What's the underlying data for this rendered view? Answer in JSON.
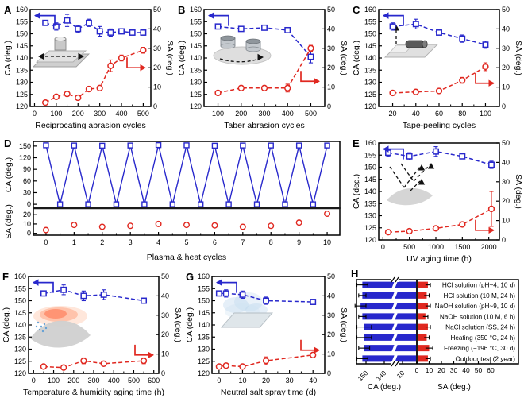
{
  "colors": {
    "ca_blue": "#2828CC",
    "sa_red": "#E02820",
    "frame": "#000000",
    "divider": "#1a1a1a",
    "inset_gray": "#d6d6d6"
  },
  "chart_data": [
    {
      "id": "A",
      "type": "dual",
      "letter": "A",
      "xlabel": "Reciprocating abrasion cycles",
      "ylabel_left": "CA (deg.)",
      "ylabel_right": "SA (deg.)",
      "xlim": [
        -20,
        535
      ],
      "xticks": [
        0,
        100,
        200,
        300,
        400,
        500
      ],
      "ylim_left": [
        120,
        160
      ],
      "yticks_left": [
        120,
        125,
        130,
        135,
        140,
        145,
        150,
        155,
        160
      ],
      "ylim_right": [
        0,
        50
      ],
      "yticks_right": [
        0,
        10,
        20,
        30,
        40,
        50
      ],
      "ca": {
        "x": [
          50,
          100,
          150,
          200,
          250,
          300,
          350,
          400,
          450,
          500
        ],
        "y": [
          154.5,
          153,
          155.5,
          152,
          154.5,
          151,
          150.5,
          151,
          150.5,
          150.5
        ],
        "err": [
          1,
          1.5,
          2.5,
          1.5,
          1.5,
          2,
          1.5,
          1,
          1,
          1
        ]
      },
      "sa": {
        "x": [
          50,
          100,
          150,
          200,
          250,
          300,
          350,
          400,
          500
        ],
        "y": [
          2,
          5,
          6.5,
          4.5,
          9,
          9.5,
          21,
          25,
          29
        ],
        "err": [
          1,
          1,
          1,
          1,
          1,
          1,
          3,
          1.5,
          1.5
        ]
      },
      "inset": "reciprocating",
      "red_arrow_sa": 20
    },
    {
      "id": "B",
      "type": "dual",
      "letter": "B",
      "xlabel": "Taber abrasion cycles",
      "ylabel_left": "CA (deg.)",
      "ylabel_right": "SA (deg.)",
      "xlim": [
        40,
        560
      ],
      "xticks": [
        100,
        200,
        300,
        400,
        500
      ],
      "ylim_left": [
        120,
        160
      ],
      "yticks_left": [
        120,
        125,
        130,
        135,
        140,
        145,
        150,
        155,
        160
      ],
      "ylim_right": [
        0,
        50
      ],
      "yticks_right": [
        0,
        10,
        20,
        30,
        40,
        50
      ],
      "ca": {
        "x": [
          100,
          200,
          300,
          400,
          500
        ],
        "y": [
          153,
          152,
          152.5,
          151.5,
          140.5
        ],
        "err": [
          1,
          1,
          1,
          1,
          2.5
        ]
      },
      "sa": {
        "x": [
          100,
          200,
          300,
          400,
          500
        ],
        "y": [
          7,
          9.5,
          9.5,
          9.5,
          30
        ],
        "err": [
          1,
          1,
          1,
          2,
          1.5
        ]
      },
      "inset": "taber",
      "red_arrow_sa": 13
    },
    {
      "id": "C",
      "type": "dual",
      "letter": "C",
      "xlabel": "Tape-peeling cycles",
      "ylabel_left": "CA (deg.)",
      "ylabel_right": "SA (deg.)",
      "xlim": [
        8,
        112
      ],
      "xticks": [
        20,
        40,
        60,
        80,
        100
      ],
      "ylim_left": [
        120,
        160
      ],
      "yticks_left": [
        120,
        125,
        130,
        135,
        140,
        145,
        150,
        155,
        160
      ],
      "ylim_right": [
        0,
        50
      ],
      "yticks_right": [
        0,
        10,
        20,
        30,
        40,
        50
      ],
      "ca": {
        "x": [
          20,
          40,
          60,
          80,
          100
        ],
        "y": [
          153,
          154,
          150.5,
          148,
          145.5
        ],
        "err": [
          1.5,
          2,
          1,
          1.5,
          1.5
        ]
      },
      "sa": {
        "x": [
          20,
          40,
          60,
          80,
          100
        ],
        "y": [
          7,
          7.5,
          8,
          13.5,
          20.5
        ],
        "err": [
          1,
          1,
          1,
          1.5,
          2
        ]
      },
      "inset": "tape",
      "red_arrow_sa": 12
    },
    {
      "id": "D",
      "type": "split",
      "letter": "D",
      "xlabel": "Plasma & heat cycles",
      "ylabel_top": "CA (deg.)",
      "ylabel_bottom": "SA (deg.)",
      "xlim": [
        -0.45,
        10.45
      ],
      "xticks": [
        0,
        1,
        2,
        3,
        4,
        5,
        6,
        7,
        8,
        9,
        10
      ],
      "ylim_top": [
        -10,
        162
      ],
      "yticks_top": [
        0,
        30,
        60,
        90,
        120,
        150
      ],
      "ylim_bottom": [
        -2,
        27
      ],
      "yticks_bottom": [
        0,
        10,
        20
      ],
      "ca": {
        "x": [
          0,
          0.5,
          1,
          1.5,
          2,
          2.5,
          3,
          3.5,
          4,
          4.5,
          5,
          5.5,
          6,
          6.5,
          7,
          7.5,
          8,
          8.5,
          9,
          9.5,
          10
        ],
        "y": [
          152,
          0,
          151.5,
          0,
          151,
          0,
          151.5,
          0,
          152.5,
          0,
          152,
          0,
          151,
          0,
          151.5,
          0,
          151.5,
          0,
          151.5,
          0,
          151.5
        ],
        "err": [
          3,
          2,
          3,
          2,
          3,
          2,
          3,
          2,
          4,
          2,
          4,
          2,
          3,
          2,
          3,
          2,
          3,
          2,
          3,
          2,
          3
        ]
      },
      "sa": {
        "x": [
          0,
          1,
          2,
          3,
          4,
          5,
          6,
          7,
          8,
          9,
          10
        ],
        "y": [
          3.5,
          9,
          7,
          8,
          10,
          9,
          8.5,
          7,
          8,
          11.5,
          21
        ],
        "err": [
          1,
          1,
          1,
          1,
          2,
          2,
          1.5,
          1,
          2,
          1.5,
          1.5
        ]
      }
    },
    {
      "id": "E",
      "type": "dual",
      "letter": "E",
      "xlabel": "UV aging time (h)",
      "ylabel_left": "CA (deg.)",
      "ylabel_right": "SA (deg.)",
      "xlim": [
        -80,
        2200
      ],
      "xticks": [
        0,
        500,
        1000,
        1500,
        2000
      ],
      "ylim_left": [
        120,
        160
      ],
      "yticks_left": [
        120,
        125,
        130,
        135,
        140,
        145,
        150,
        155,
        160
      ],
      "ylim_right": [
        0,
        50
      ],
      "yticks_right": [
        0,
        10,
        20,
        30,
        40,
        50
      ],
      "ca": {
        "x": [
          100,
          500,
          1000,
          1500,
          2050
        ],
        "y": [
          156,
          154.5,
          156.5,
          154.5,
          151
        ],
        "err": [
          1.5,
          1.5,
          2,
          1,
          1.5
        ]
      },
      "sa": {
        "x": [
          100,
          500,
          1000,
          1500,
          2050
        ],
        "y": [
          4,
          4.5,
          6,
          8,
          16
        ],
        "err": [
          1,
          1,
          1,
          1,
          9
        ]
      },
      "inset": "uv",
      "red_arrow_sa": 5
    },
    {
      "id": "F",
      "type": "dual",
      "letter": "F",
      "xlabel": "Temperature & humidity aging time (h)",
      "ylabel_left": "CA (deg.)",
      "ylabel_right": "SA (deg.)",
      "xlim": [
        -25,
        625
      ],
      "xticks": [
        0,
        100,
        200,
        300,
        400,
        500,
        600
      ],
      "ylim_left": [
        120,
        160
      ],
      "yticks_left": [
        120,
        125,
        130,
        135,
        140,
        145,
        150,
        155,
        160
      ],
      "ylim_right": [
        0,
        50
      ],
      "yticks_right": [
        0,
        10,
        20,
        30,
        40,
        50
      ],
      "ca": {
        "x": [
          50,
          150,
          250,
          350,
          550
        ],
        "y": [
          153,
          154.5,
          152,
          152.5,
          150
        ],
        "err": [
          1,
          2,
          2,
          2,
          1
        ]
      },
      "sa": {
        "x": [
          50,
          150,
          250,
          350,
          550
        ],
        "y": [
          3.5,
          3,
          6.5,
          5,
          6.5
        ],
        "err": [
          1,
          1,
          1.5,
          1,
          1.5
        ]
      },
      "inset": "heat",
      "red_arrow_sa": 9.5
    },
    {
      "id": "G",
      "type": "dual",
      "letter": "G",
      "xlabel": "Neutral salt spray time (d)",
      "ylabel_left": "CA (deg.)",
      "ylabel_right": "SA (deg.)",
      "xlim": [
        -3,
        45
      ],
      "xticks": [
        0,
        10,
        20,
        30,
        40
      ],
      "ylim_left": [
        120,
        160
      ],
      "yticks_left": [
        120,
        125,
        130,
        135,
        140,
        145,
        150,
        155,
        160
      ],
      "ylim_right": [
        0,
        50
      ],
      "yticks_right": [
        0,
        10,
        20,
        30,
        40,
        50
      ],
      "ca": {
        "x": [
          0,
          3,
          10,
          20,
          40
        ],
        "y": [
          153,
          153,
          152.5,
          150,
          149.5
        ],
        "err": [
          1,
          1.5,
          1.5,
          1.5,
          1
        ]
      },
      "sa": {
        "x": [
          0,
          3,
          10,
          20,
          40
        ],
        "y": [
          3.5,
          4,
          3.5,
          6.5,
          9.5
        ],
        "err": [
          0.5,
          1,
          1,
          2,
          1
        ]
      },
      "inset": "spray",
      "red_arrow_sa": 12
    },
    {
      "id": "H",
      "type": "hbar",
      "letter": "H",
      "xlabel_left": "CA (deg.)",
      "xlabel_right": "SA (deg.)",
      "ca_ticks": [
        150,
        140,
        10
      ],
      "sa_ticks": [
        0,
        10,
        20,
        30,
        40,
        50,
        60
      ],
      "rows": [
        {
          "label": "HCl solution (pH~4, 10 d)",
          "ca": 152,
          "ca_err": 3,
          "sa": 9,
          "sa_err": 2
        },
        {
          "label": "HCl solution (10 M, 24 h)",
          "ca": 152,
          "ca_err": 2,
          "sa": 8,
          "sa_err": 2
        },
        {
          "label": "NaOH solution (pH~9, 10 d)",
          "ca": 153,
          "ca_err": 3,
          "sa": 9,
          "sa_err": 2
        },
        {
          "label": "NaOH solution (10 M, 6 h)",
          "ca": 152,
          "ca_err": 2,
          "sa": 7,
          "sa_err": 2
        },
        {
          "label": "NaCl solution (SS, 24 h)",
          "ca": 151,
          "ca_err": 4,
          "sa": 9,
          "sa_err": 2
        },
        {
          "label": "Heating (350 °C, 24 h)",
          "ca": 151,
          "ca_err": 4,
          "sa": 8,
          "sa_err": 2
        },
        {
          "label": "Freezing (−196 °C, 30 d)",
          "ca": 151,
          "ca_err": 3,
          "sa": 10,
          "sa_err": 3
        },
        {
          "label": "Outdoor test (2 year)",
          "ca": 152,
          "ca_err": 3,
          "sa": 9,
          "sa_err": 2
        }
      ]
    }
  ]
}
